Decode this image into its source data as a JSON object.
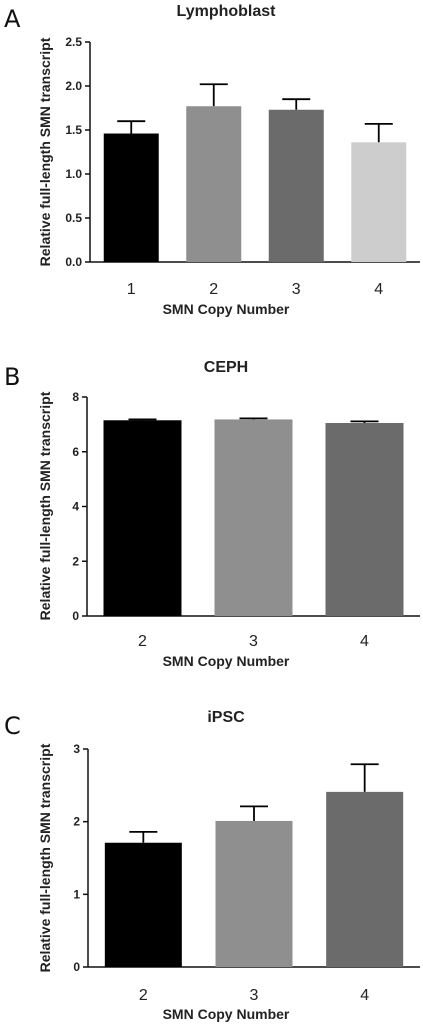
{
  "chart_data": [
    {
      "panel": "A",
      "type": "bar",
      "title": "Lymphoblast",
      "xlabel": "SMN Copy Number",
      "ylabel": "Relative full-length SMN transcript",
      "categories": [
        "1",
        "2",
        "3",
        "4"
      ],
      "values": [
        1.46,
        1.77,
        1.73,
        1.36
      ],
      "errors": [
        0.14,
        0.25,
        0.12,
        0.21
      ],
      "ylim": [
        0,
        2.5
      ],
      "yticks": [
        "0.0",
        "0.5",
        "1.0",
        "1.5",
        "2.0",
        "2.5"
      ],
      "colors": [
        "#000000",
        "#8f8f8f",
        "#6b6b6b",
        "#cdcdcd"
      ],
      "grid": false
    },
    {
      "panel": "B",
      "type": "bar",
      "title": "CEPH",
      "xlabel": "SMN Copy Number",
      "ylabel": "Relative full-length SMN transcript",
      "categories": [
        "2",
        "3",
        "4"
      ],
      "values": [
        7.15,
        7.18,
        7.05
      ],
      "errors": [
        0.03,
        0.04,
        0.06
      ],
      "ylim": [
        0,
        8
      ],
      "yticks": [
        "0",
        "2",
        "4",
        "6",
        "8"
      ],
      "colors": [
        "#000000",
        "#8f8f8f",
        "#6b6b6b"
      ],
      "grid": false
    },
    {
      "panel": "C",
      "type": "bar",
      "title": "iPSC",
      "xlabel": "SMN Copy Number",
      "ylabel": "Relative full-length SMN transcript",
      "categories": [
        "2",
        "3",
        "4"
      ],
      "values": [
        1.71,
        2.01,
        2.41
      ],
      "errors": [
        0.15,
        0.2,
        0.38
      ],
      "ylim": [
        0,
        3
      ],
      "yticks": [
        "0",
        "1",
        "2",
        "3"
      ],
      "colors": [
        "#000000",
        "#8f8f8f",
        "#6b6b6b"
      ],
      "grid": false
    }
  ]
}
